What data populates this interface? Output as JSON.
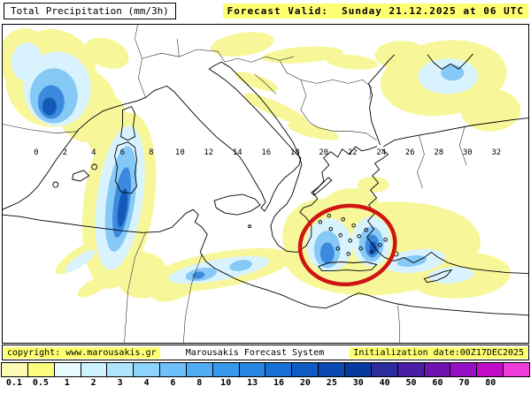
{
  "header": {
    "title": "Total Precipitation (mm/3h)",
    "forecast_valid": "Forecast Valid:  Sunday 21.12.2025 at 06 UTC"
  },
  "map": {
    "longitude_labels": [
      "0",
      "2",
      "4",
      "6",
      "8",
      "10",
      "12",
      "14",
      "16",
      "18",
      "20",
      "22",
      "24",
      "26",
      "28",
      "30",
      "32"
    ],
    "annotation_color": "#d01414"
  },
  "footer": {
    "copyright": "copyright: www.marousakis.gr",
    "system": "Marousakis Forecast System",
    "initialization": "Initialization date:00Z17DEC2025"
  },
  "colorbar": {
    "unit": "mm/3h",
    "labels": [
      "0.1",
      "0.5",
      "1",
      "2",
      "3",
      "4",
      "6",
      "8",
      "10",
      "13",
      "16",
      "20",
      "25",
      "30",
      "40",
      "50",
      "60",
      "70",
      "80"
    ],
    "colors": [
      "#fbfbb4",
      "#fbfb7d",
      "#e8fcff",
      "#cef2fe",
      "#aee5fd",
      "#8dd3fb",
      "#6dc0f8",
      "#50adf3",
      "#3899ec",
      "#2685e1",
      "#1970d4",
      "#0f5cc5",
      "#0a49b2",
      "#08399e",
      "#2c2c9c",
      "#4b1ea6",
      "#6e13b2",
      "#9410c2",
      "#c00cc9",
      "#ee3bd9"
    ]
  },
  "colors": {
    "highlight": "#ffff72"
  }
}
